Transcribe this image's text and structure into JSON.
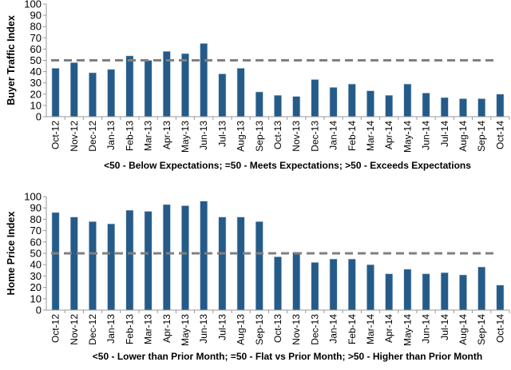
{
  "chart_data": [
    {
      "type": "bar",
      "ylabel": "Buyer Traffic Index",
      "xlabel": "<50 - Below Expectations; =50 - Meets Expectations; >50 - Exceeds Expectations",
      "ylim": [
        0,
        100
      ],
      "yticks": [
        0,
        10,
        20,
        30,
        40,
        50,
        60,
        70,
        80,
        90,
        100
      ],
      "reference_line": 50,
      "bar_color": "#255b88",
      "reference_color": "#808080",
      "categories": [
        "Oct-12",
        "Nov-12",
        "Dec-12",
        "Jan-13",
        "Feb-13",
        "Mar-13",
        "Apr-13",
        "May-13",
        "Jun-13",
        "Jul-13",
        "Aug-13",
        "Sep-13",
        "Oct-13",
        "Nov-13",
        "Dec-13",
        "Jan-14",
        "Feb-14",
        "Mar-14",
        "Apr-14",
        "May-14",
        "Jun-14",
        "Jul-14",
        "Aug-14",
        "Sep-14",
        "Oct-14"
      ],
      "values": [
        43,
        48,
        39,
        42,
        54,
        50,
        58,
        56,
        65,
        38,
        43,
        22,
        19,
        18,
        33,
        26,
        29,
        23,
        19,
        29,
        21,
        17,
        16,
        16,
        20
      ]
    },
    {
      "type": "bar",
      "ylabel": "Home Price Index",
      "xlabel": "<50 - Lower than Prior Month; =50 - Flat vs Prior Month; >50 - Higher than Prior Month",
      "ylim": [
        0,
        100
      ],
      "yticks": [
        0,
        10,
        20,
        30,
        40,
        50,
        60,
        70,
        80,
        90,
        100
      ],
      "reference_line": 50,
      "bar_color": "#255b88",
      "reference_color": "#808080",
      "categories": [
        "Oct-12",
        "Nov-12",
        "Dec-12",
        "Jan-13",
        "Feb-13",
        "Mar-13",
        "Apr-13",
        "May-13",
        "Jun-13",
        "Jul-13",
        "Aug-13",
        "Sep-13",
        "Oct-13",
        "Nov-13",
        "Dec-13",
        "Jan-14",
        "Feb-14",
        "Mar-14",
        "Apr-14",
        "May-14",
        "Jun-14",
        "Jul-14",
        "Aug-14",
        "Sep-14",
        "Oct-14"
      ],
      "values": [
        86,
        82,
        78,
        76,
        88,
        87,
        93,
        92,
        96,
        82,
        82,
        78,
        47,
        51,
        42,
        45,
        45,
        40,
        32,
        36,
        32,
        33,
        31,
        38,
        22
      ]
    }
  ]
}
